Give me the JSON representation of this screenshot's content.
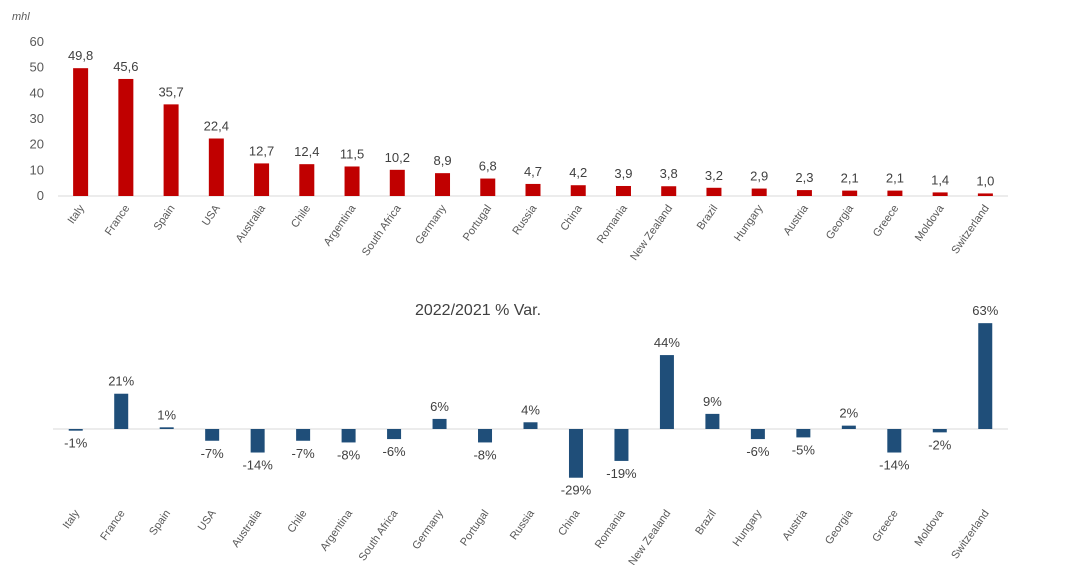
{
  "chart_data": [
    {
      "type": "bar",
      "unit_label": "mhl",
      "categories": [
        "Italy",
        "France",
        "Spain",
        "USA",
        "Australia",
        "Chile",
        "Argentina",
        "South Africa",
        "Germany",
        "Portugal",
        "Russia",
        "China",
        "Romania",
        "New Zealand",
        "Brazil",
        "Hungary",
        "Austria",
        "Georgia",
        "Greece",
        "Moldova",
        "Switzerland"
      ],
      "values": [
        49.8,
        45.6,
        35.7,
        22.4,
        12.7,
        12.4,
        11.5,
        10.2,
        8.9,
        6.8,
        4.7,
        4.2,
        3.9,
        3.8,
        3.2,
        2.9,
        2.3,
        2.1,
        2.1,
        1.4,
        1.0
      ],
      "value_labels": [
        "49,8",
        "45,6",
        "35,7",
        "22,4",
        "12,7",
        "12,4",
        "11,5",
        "10,2",
        "8,9",
        "6,8",
        "4,7",
        "4,2",
        "3,9",
        "3,8",
        "3,2",
        "2,9",
        "2,3",
        "2,1",
        "2,1",
        "1,4",
        "1,0"
      ],
      "ylim": [
        0,
        60
      ],
      "yticks": [
        "0",
        "10",
        "20",
        "30",
        "40",
        "50",
        "60"
      ],
      "color": "#c00000",
      "grid": false
    },
    {
      "type": "bar",
      "title": "2022/2021 % Var.",
      "categories": [
        "Italy",
        "France",
        "Spain",
        "USA",
        "Australia",
        "Chile",
        "Argentina",
        "South Africa",
        "Germany",
        "Portugal",
        "Russia",
        "China",
        "Romania",
        "New Zealand",
        "Brazil",
        "Hungary",
        "Austria",
        "Georgia",
        "Greece",
        "Moldova",
        "Switzerland"
      ],
      "values": [
        -1,
        21,
        1,
        -7,
        -14,
        -7,
        -8,
        -6,
        6,
        -8,
        4,
        -29,
        -19,
        44,
        9,
        -6,
        -5,
        2,
        -14,
        -2,
        63
      ],
      "value_labels": [
        "-1%",
        "21%",
        "1%",
        "-7%",
        "-14%",
        "-7%",
        "-8%",
        "-6%",
        "6%",
        "-8%",
        "4%",
        "-29%",
        "-19%",
        "44%",
        "9%",
        "-6%",
        "-5%",
        "2%",
        "-14%",
        "-2%",
        "63%"
      ],
      "color": "#1f4e79",
      "grid": false
    }
  ]
}
